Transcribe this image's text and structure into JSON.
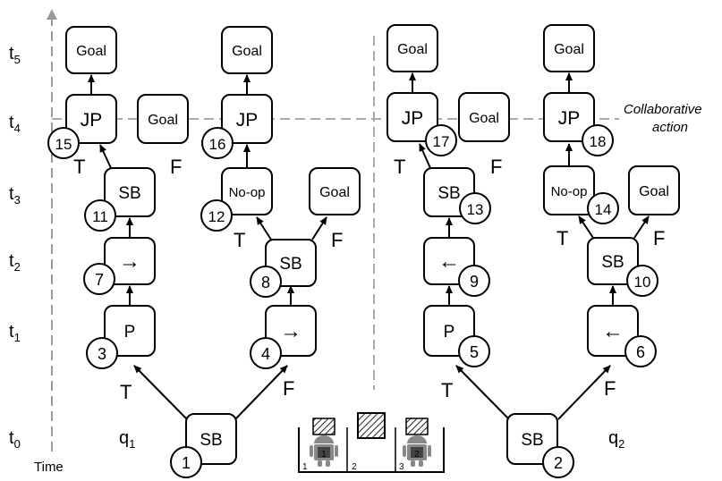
{
  "axis": {
    "time_label": "Time",
    "time_steps": [
      {
        "base": "t",
        "sub": "5"
      },
      {
        "base": "t",
        "sub": "4"
      },
      {
        "base": "t",
        "sub": "3"
      },
      {
        "base": "t",
        "sub": "2"
      },
      {
        "base": "t",
        "sub": "1"
      },
      {
        "base": "t",
        "sub": "0"
      }
    ]
  },
  "collaborative_label": {
    "line1": "Collaborative",
    "line2": "action"
  },
  "agents": {
    "q1": {
      "base": "q",
      "sub": "1"
    },
    "q2": {
      "base": "q",
      "sub": "2"
    }
  },
  "node_labels": {
    "root1": "SB",
    "root2": "SB",
    "q1_t1_left": "P",
    "q1_t1_right": "→",
    "q1_t2_left": "→",
    "q1_t2_right": "SB",
    "q1_t3_left": "SB",
    "q1_t3_mid": "No-op",
    "q1_t3_right": "Goal",
    "q1_t4_jp_left": "JP",
    "q1_t4_goal": "Goal",
    "q1_t4_jp_right": "JP",
    "q1_t5_goal_left": "Goal",
    "q1_t5_goal_right": "Goal",
    "q2_t1_left": "P",
    "q2_t1_right": "←",
    "q2_t2_left": "←",
    "q2_t2_right": "SB",
    "q2_t3_left": "SB",
    "q2_t3_mid": "No-op",
    "q2_t3_right": "Goal",
    "q2_t4_jp_left": "JP",
    "q2_t4_goal": "Goal",
    "q2_t4_jp_right": "JP",
    "q2_t5_goal_left": "Goal",
    "q2_t5_goal_right": "Goal"
  },
  "node_numbers": {
    "n1": "1",
    "n2": "2",
    "n3": "3",
    "n4": "4",
    "n5": "5",
    "n6": "6",
    "n7": "7",
    "n8": "8",
    "n9": "9",
    "n10": "10",
    "n11": "11",
    "n12": "12",
    "n13": "13",
    "n14": "14",
    "n15": "15",
    "n16": "16",
    "n17": "17",
    "n18": "18"
  },
  "branch_labels": {
    "true": "T",
    "false": "F"
  },
  "scene": {
    "slots": [
      "1",
      "2",
      "3"
    ],
    "robots": [
      "1",
      "2"
    ]
  }
}
